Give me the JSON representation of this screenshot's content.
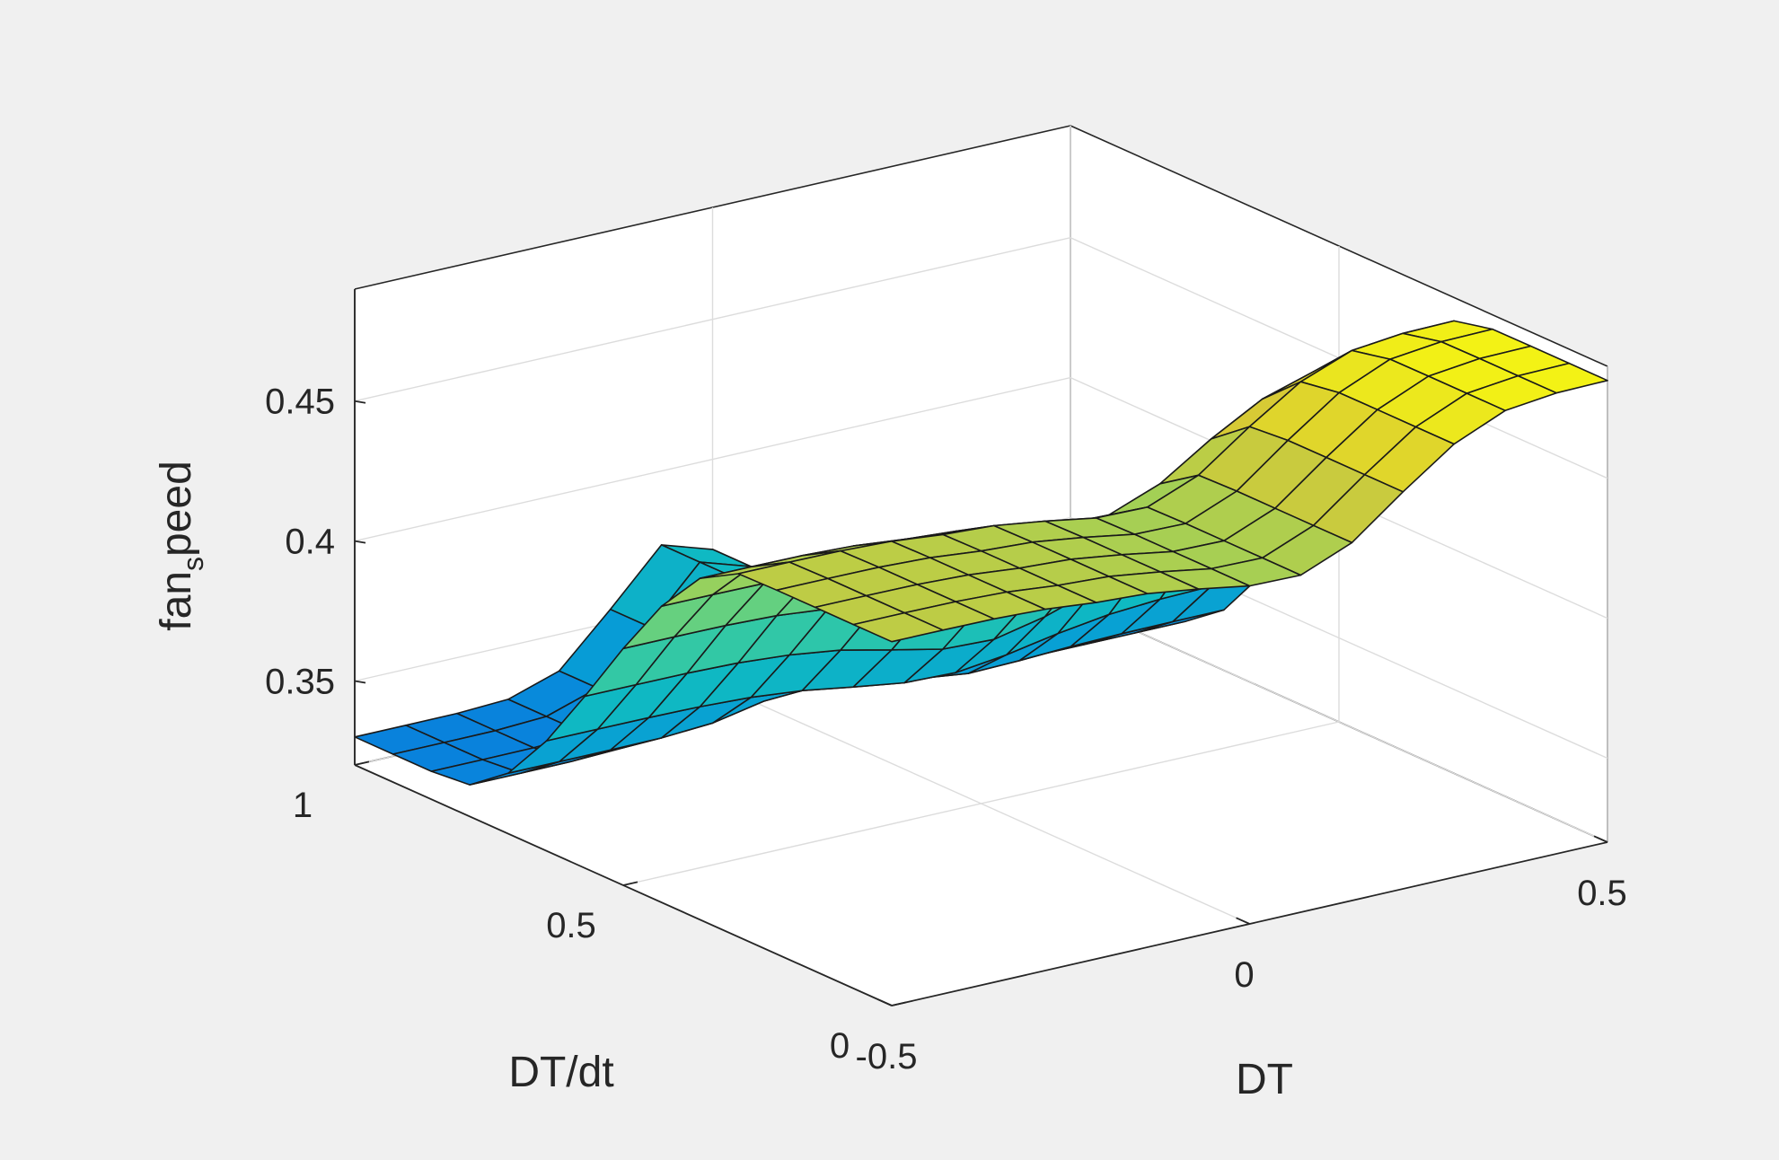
{
  "figure_background": "#f0f0f0",
  "chart_data": {
    "type": "surface",
    "title": "",
    "xlabel": "DT",
    "ylabel": "DT/dt",
    "zlabel_main": "fan",
    "zlabel_sub": "s",
    "zlabel_rest": "peed",
    "xlim": [
      -0.5,
      0.5
    ],
    "ylim": [
      0,
      1
    ],
    "zlim": [
      0.32,
      0.49
    ],
    "x_ticks": [
      {
        "value": -0.5,
        "label": "-0.5"
      },
      {
        "value": 0,
        "label": "0"
      },
      {
        "value": 0.5,
        "label": "0.5"
      }
    ],
    "y_ticks": [
      {
        "value": 0,
        "label": "0"
      },
      {
        "value": 0.5,
        "label": "0.5"
      },
      {
        "value": 1,
        "label": "1"
      }
    ],
    "z_ticks": [
      {
        "value": 0.35,
        "label": "0.35"
      },
      {
        "value": 0.4,
        "label": "0.4"
      },
      {
        "value": 0.45,
        "label": "0.45"
      }
    ],
    "colormap": "parula",
    "grid_size": 15,
    "z_range_shown": [
      0.32,
      0.49
    ]
  }
}
